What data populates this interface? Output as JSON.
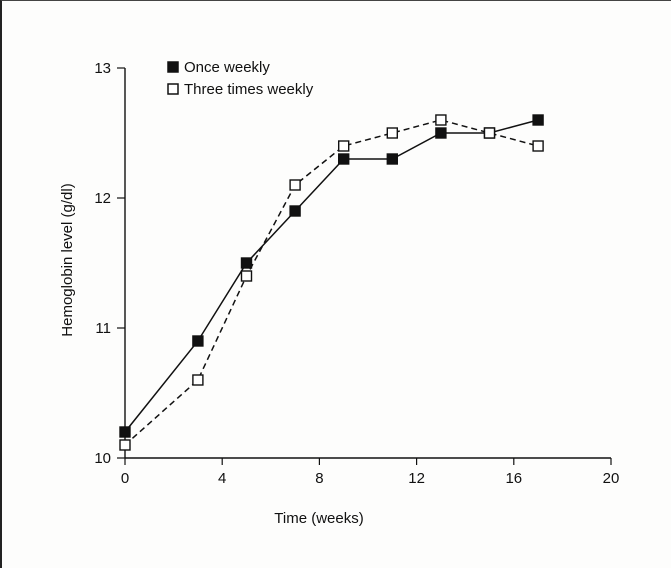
{
  "chart_data": {
    "type": "line",
    "title": "",
    "xlabel": "Time (weeks)",
    "ylabel": "Hemoglobin level (g/dl)",
    "xlim": [
      0,
      20
    ],
    "ylim": [
      10,
      13
    ],
    "xticks": [
      0,
      4,
      8,
      12,
      16,
      20
    ],
    "yticks": [
      10,
      11,
      12,
      13
    ],
    "grid": false,
    "legend_position": "top-left",
    "series": [
      {
        "name": "Once weekly",
        "marker": "filled-square",
        "line": "solid",
        "color": "#111111",
        "x": [
          0,
          3,
          5,
          7,
          9,
          11,
          13,
          15,
          17
        ],
        "y": [
          10.2,
          10.9,
          11.5,
          11.9,
          12.3,
          12.3,
          12.5,
          12.5,
          12.6
        ]
      },
      {
        "name": "Three times weekly",
        "marker": "open-square",
        "line": "dashed",
        "color": "#111111",
        "x": [
          0,
          3,
          5,
          7,
          9,
          11,
          13,
          15,
          17
        ],
        "y": [
          10.1,
          10.6,
          11.4,
          12.1,
          12.4,
          12.5,
          12.6,
          12.5,
          12.4
        ]
      }
    ]
  }
}
